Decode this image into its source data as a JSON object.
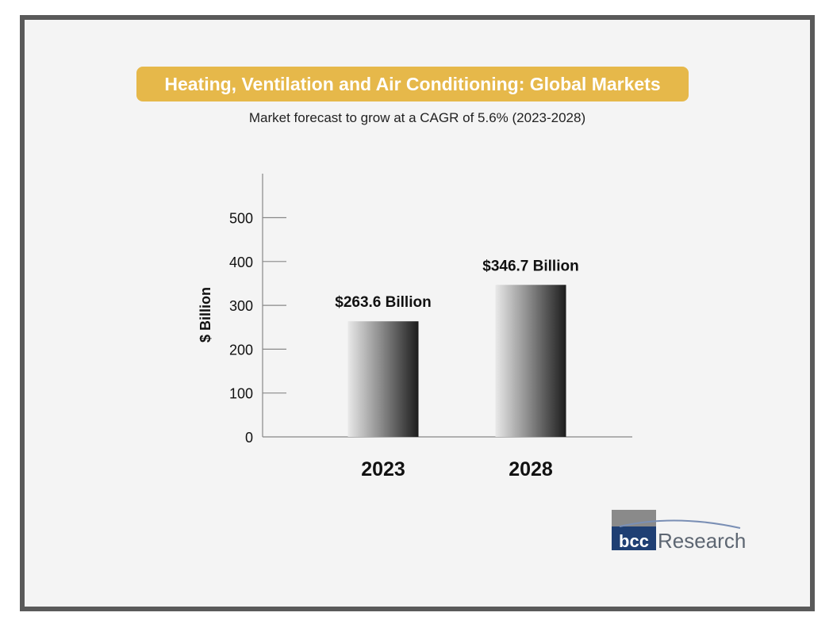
{
  "header": {
    "title": "Heating, Ventilation and Air Conditioning: Global Markets",
    "subtitle": "Market forecast to grow at a CAGR of 5.6% (2023-2028)"
  },
  "colors": {
    "frame": "#5a5a5a",
    "background": "#f4f4f4",
    "title_pill": "#e6b84a",
    "axis": "#888888"
  },
  "chart_data": {
    "type": "bar",
    "title": "",
    "xlabel": "",
    "ylabel": "$ Billion",
    "categories": [
      "2023",
      "2028"
    ],
    "values": [
      263.6,
      346.7
    ],
    "data_labels": [
      "$263.6 Billion",
      "$346.7 Billion"
    ],
    "yticks": [
      0,
      100,
      200,
      300,
      400,
      500
    ],
    "ylim": [
      0,
      600
    ],
    "grid": false,
    "legend": "none"
  },
  "logo": {
    "mark": "bcc",
    "text": "Research"
  }
}
